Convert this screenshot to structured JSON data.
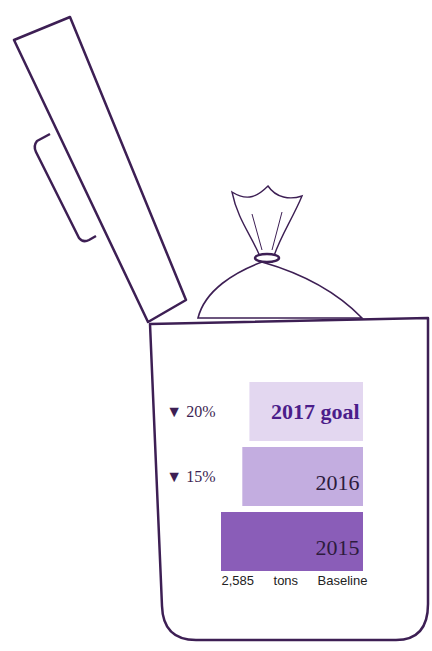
{
  "chart_data": {
    "type": "bar",
    "orientation": "horizontal",
    "categories": [
      "2017 goal",
      "2016",
      "2015"
    ],
    "values": [
      2068,
      2197,
      2585
    ],
    "colors": [
      "#e3d7f0",
      "#c3ade0",
      "#8a5db8"
    ],
    "xlim": [
      0,
      2585
    ],
    "tick_labels": false,
    "annotations": [
      "▼ 20%",
      "▼ 15%",
      null
    ],
    "baseline": {
      "value": 2585,
      "label": "2,585",
      "unit": "tons",
      "text": "Baseline"
    }
  }
}
